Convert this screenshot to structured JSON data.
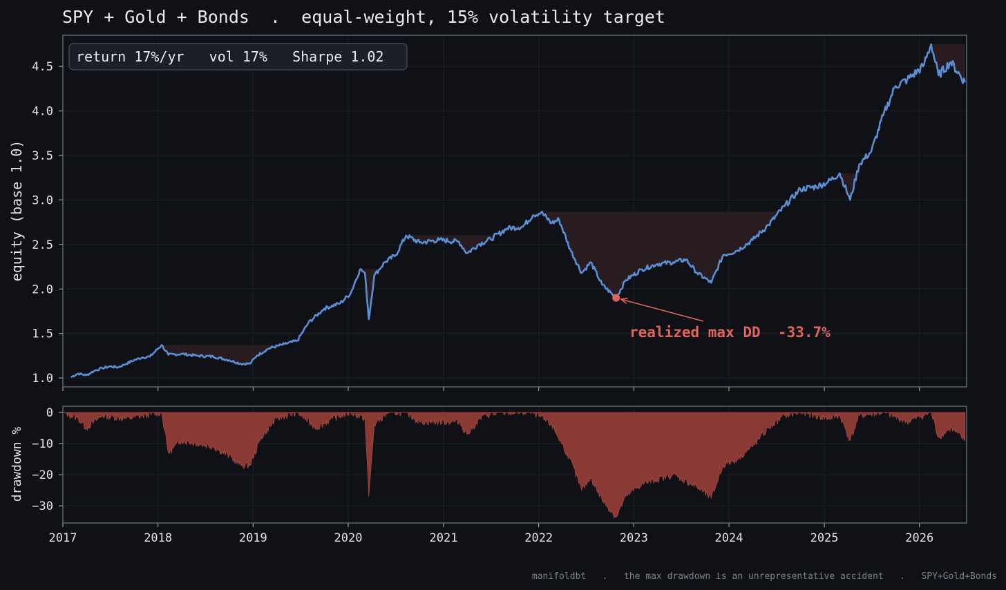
{
  "chart_data": [
    {
      "type": "line",
      "title": "SPY + Gold + Bonds  .  equal-weight, 15% volatility target",
      "ylabel": "equity (base 1.0)",
      "ylim": [
        0.9,
        4.85
      ],
      "yticks": [
        "1.0",
        "1.5",
        "2.0",
        "2.5",
        "3.0",
        "3.5",
        "4.0",
        "4.5"
      ],
      "xlim": [
        "2017-01-01",
        "2026-07-01"
      ],
      "xticks": [
        "2017",
        "2018",
        "2019",
        "2020",
        "2021",
        "2022",
        "2023",
        "2024",
        "2025",
        "2026"
      ],
      "grid": true,
      "stats_box": "return 17%/yr   vol 17%   Sharpe 1.02",
      "series": [
        {
          "color": "#5b8fd4",
          "points": [
            [
              "2017-02-01",
              1.01
            ],
            [
              "2017-03-01",
              1.05
            ],
            [
              "2017-04-01",
              1.03
            ],
            [
              "2017-05-01",
              1.08
            ],
            [
              "2017-06-01",
              1.11
            ],
            [
              "2017-07-01",
              1.13
            ],
            [
              "2017-08-01",
              1.12
            ],
            [
              "2017-09-01",
              1.16
            ],
            [
              "2017-10-01",
              1.2
            ],
            [
              "2017-11-01",
              1.23
            ],
            [
              "2017-12-01",
              1.24
            ],
            [
              "2018-01-15",
              1.37
            ],
            [
              "2018-02-10",
              1.26
            ],
            [
              "2018-04-01",
              1.27
            ],
            [
              "2018-06-01",
              1.25
            ],
            [
              "2018-08-01",
              1.24
            ],
            [
              "2018-10-01",
              1.2
            ],
            [
              "2018-11-15",
              1.16
            ],
            [
              "2018-12-20",
              1.16
            ],
            [
              "2019-01-15",
              1.25
            ],
            [
              "2019-03-01",
              1.33
            ],
            [
              "2019-05-01",
              1.38
            ],
            [
              "2019-06-20",
              1.42
            ],
            [
              "2019-08-01",
              1.62
            ],
            [
              "2019-10-01",
              1.78
            ],
            [
              "2019-12-01",
              1.84
            ],
            [
              "2020-01-10",
              1.95
            ],
            [
              "2020-02-15",
              2.22
            ],
            [
              "2020-03-05",
              2.18
            ],
            [
              "2020-03-20",
              1.66
            ],
            [
              "2020-04-10",
              2.15
            ],
            [
              "2020-05-20",
              2.3
            ],
            [
              "2020-07-01",
              2.38
            ],
            [
              "2020-08-10",
              2.6
            ],
            [
              "2020-10-01",
              2.52
            ],
            [
              "2020-12-15",
              2.55
            ],
            [
              "2021-03-01",
              2.53
            ],
            [
              "2021-04-01",
              2.4
            ],
            [
              "2021-05-15",
              2.5
            ],
            [
              "2021-07-01",
              2.56
            ],
            [
              "2021-09-01",
              2.68
            ],
            [
              "2021-11-01",
              2.7
            ],
            [
              "2021-12-10",
              2.83
            ],
            [
              "2022-01-10",
              2.86
            ],
            [
              "2022-02-20",
              2.74
            ],
            [
              "2022-03-20",
              2.78
            ],
            [
              "2022-05-01",
              2.45
            ],
            [
              "2022-06-15",
              2.18
            ],
            [
              "2022-07-20",
              2.3
            ],
            [
              "2022-09-01",
              2.05
            ],
            [
              "2022-10-25",
              1.9
            ],
            [
              "2022-12-01",
              2.1
            ],
            [
              "2023-02-01",
              2.22
            ],
            [
              "2023-04-01",
              2.28
            ],
            [
              "2023-06-01",
              2.3
            ],
            [
              "2023-07-20",
              2.33
            ],
            [
              "2023-09-01",
              2.18
            ],
            [
              "2023-10-25",
              2.07
            ],
            [
              "2023-12-10",
              2.38
            ],
            [
              "2024-02-01",
              2.43
            ],
            [
              "2024-04-01",
              2.55
            ],
            [
              "2024-06-01",
              2.72
            ],
            [
              "2024-08-01",
              2.93
            ],
            [
              "2024-10-01",
              3.12
            ],
            [
              "2024-12-01",
              3.15
            ],
            [
              "2025-01-15",
              3.2
            ],
            [
              "2025-03-01",
              3.3
            ],
            [
              "2025-04-10",
              3.0
            ],
            [
              "2025-05-15",
              3.4
            ],
            [
              "2025-07-01",
              3.55
            ],
            [
              "2025-08-15",
              3.95
            ],
            [
              "2025-10-01",
              4.28
            ],
            [
              "2025-11-15",
              4.35
            ],
            [
              "2026-01-15",
              4.5
            ],
            [
              "2026-02-15",
              4.75
            ],
            [
              "2026-03-15",
              4.4
            ],
            [
              "2026-05-01",
              4.55
            ],
            [
              "2026-06-25",
              4.32
            ]
          ]
        }
      ],
      "annotations": [
        {
          "text": "realized max DD  -33.7%",
          "point": [
            "2022-10-25",
            1.9
          ]
        }
      ]
    },
    {
      "type": "area",
      "ylabel": "drawdown %",
      "ylim": [
        -35.5,
        2
      ],
      "yticks": [
        "0",
        "−10",
        "−20",
        "−30"
      ],
      "xlim": [
        "2017-01-01",
        "2026-07-01"
      ],
      "xticks": [
        "2017",
        "2018",
        "2019",
        "2020",
        "2021",
        "2022",
        "2023",
        "2024",
        "2025",
        "2026"
      ],
      "series": [
        {
          "color": "#8a3a35",
          "points": [
            [
              "2017-01-01",
              0
            ],
            [
              "2017-03-01",
              -2
            ],
            [
              "2017-04-01",
              -5
            ],
            [
              "2017-06-01",
              -1
            ],
            [
              "2017-09-01",
              -2
            ],
            [
              "2018-01-15",
              0
            ],
            [
              "2018-02-10",
              -13
            ],
            [
              "2018-04-01",
              -9
            ],
            [
              "2018-06-01",
              -10
            ],
            [
              "2018-08-01",
              -11
            ],
            [
              "2018-10-01",
              -14
            ],
            [
              "2018-11-15",
              -17
            ],
            [
              "2018-12-20",
              -17
            ],
            [
              "2019-02-01",
              -8
            ],
            [
              "2019-04-01",
              -2
            ],
            [
              "2019-06-20",
              0
            ],
            [
              "2019-09-01",
              -5
            ],
            [
              "2019-11-01",
              -2
            ],
            [
              "2020-01-10",
              0
            ],
            [
              "2020-03-05",
              -2
            ],
            [
              "2020-03-20",
              -27
            ],
            [
              "2020-04-10",
              -4
            ],
            [
              "2020-06-01",
              0
            ],
            [
              "2020-08-10",
              0
            ],
            [
              "2020-10-01",
              -3
            ],
            [
              "2021-03-01",
              -3
            ],
            [
              "2021-04-01",
              -7
            ],
            [
              "2021-06-01",
              -1
            ],
            [
              "2021-09-01",
              0
            ],
            [
              "2021-12-10",
              0
            ],
            [
              "2022-02-20",
              -4
            ],
            [
              "2022-05-01",
              -15
            ],
            [
              "2022-06-15",
              -25
            ],
            [
              "2022-07-20",
              -21
            ],
            [
              "2022-09-01",
              -28
            ],
            [
              "2022-10-25",
              -33.7
            ],
            [
              "2022-12-01",
              -27
            ],
            [
              "2023-02-01",
              -23
            ],
            [
              "2023-06-01",
              -20
            ],
            [
              "2023-09-01",
              -24
            ],
            [
              "2023-10-25",
              -27.5
            ],
            [
              "2023-12-10",
              -17
            ],
            [
              "2024-02-01",
              -15
            ],
            [
              "2024-04-01",
              -11
            ],
            [
              "2024-06-01",
              -5
            ],
            [
              "2024-08-01",
              -1
            ],
            [
              "2024-10-01",
              0
            ],
            [
              "2025-01-15",
              -2
            ],
            [
              "2025-03-01",
              -1
            ],
            [
              "2025-04-10",
              -9
            ],
            [
              "2025-05-15",
              -1
            ],
            [
              "2025-08-15",
              0
            ],
            [
              "2025-11-15",
              -3
            ],
            [
              "2026-02-15",
              0
            ],
            [
              "2026-03-15",
              -8
            ],
            [
              "2026-05-01",
              -5
            ],
            [
              "2026-06-25",
              -9
            ]
          ]
        }
      ]
    }
  ],
  "footer": "manifoldbt   .   the max drawdown is an unrepresentative accident   .   SPY+Gold+Bonds",
  "colors": {
    "background": "#0f1117",
    "equity_line": "#5b8fd4",
    "drawdown_fill": "#8a3a35",
    "drawdown_shade": "#2a1e21",
    "annotation": "#e0655a",
    "frame": "#6b6f78"
  }
}
